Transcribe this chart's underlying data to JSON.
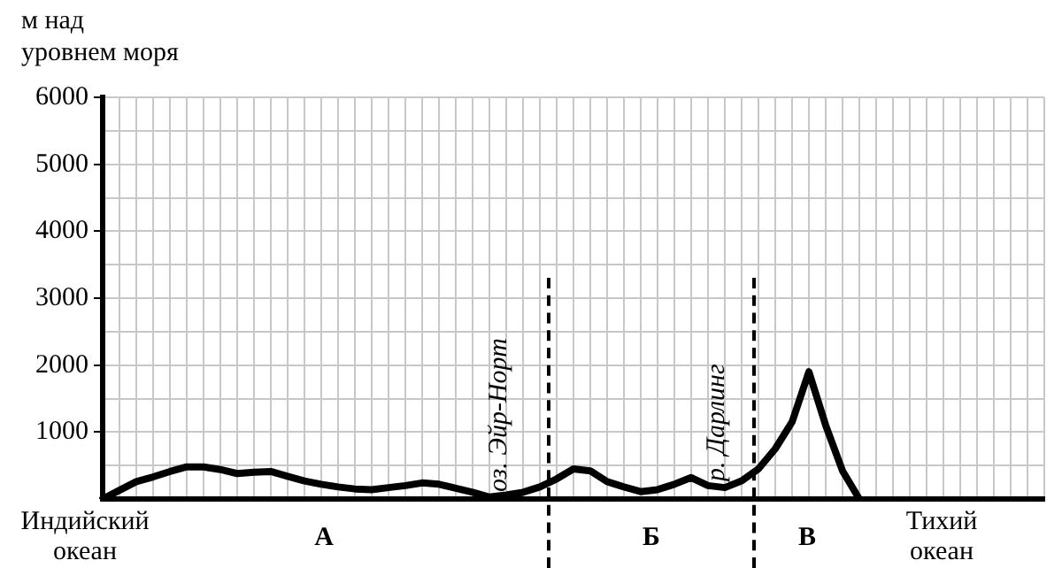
{
  "chart_data": {
    "type": "line",
    "ylabel": "м над уровнем моря",
    "categories": [
      null,
      null,
      null,
      null,
      null,
      null,
      null,
      null,
      null,
      null,
      null,
      null,
      null,
      null,
      null,
      null,
      null,
      null,
      null,
      null,
      null,
      null,
      null,
      null,
      null,
      null,
      null,
      null,
      null,
      null,
      null,
      null,
      null,
      null,
      null,
      null,
      null,
      null,
      null,
      null,
      null,
      null,
      null,
      null,
      null,
      null,
      null,
      null,
      null,
      null,
      null,
      null,
      null,
      null,
      null,
      null,
      null
    ],
    "series": [
      {
        "color": "#000000",
        "values": [
          0,
          130,
          260,
          330,
          410,
          480,
          480,
          440,
          380,
          400,
          410,
          340,
          270,
          220,
          180,
          150,
          140,
          170,
          200,
          240,
          220,
          160,
          100,
          30,
          60,
          100,
          180,
          300,
          450,
          420,
          260,
          180,
          110,
          140,
          220,
          320,
          200,
          170,
          270,
          450,
          750,
          1150,
          1900,
          1100,
          420,
          0,
          null,
          null,
          null,
          null,
          null,
          null,
          null,
          null,
          null,
          null,
          null
        ]
      }
    ],
    "ylim": [
      0,
      6000
    ],
    "yticks": [
      {
        "value": 0,
        "label": null
      },
      {
        "value": 500,
        "label": null
      },
      1000,
      {
        "value": 1500,
        "label": null
      },
      2000,
      {
        "value": 2500,
        "label": null
      },
      3000,
      {
        "value": 3500,
        "label": null
      },
      4000,
      {
        "value": 4500,
        "label": null
      },
      5000,
      {
        "value": 5500,
        "label": null
      },
      6000
    ],
    "tick_labels": "y",
    "grid": true,
    "marker": "none",
    "line_style": "solid",
    "legend": false,
    "annotations": [
      "оз. Эйр-Норт",
      "р. Дарлинг",
      "Индийский океан",
      "А",
      "Б",
      "В",
      "Тихий океан"
    ]
  }
}
